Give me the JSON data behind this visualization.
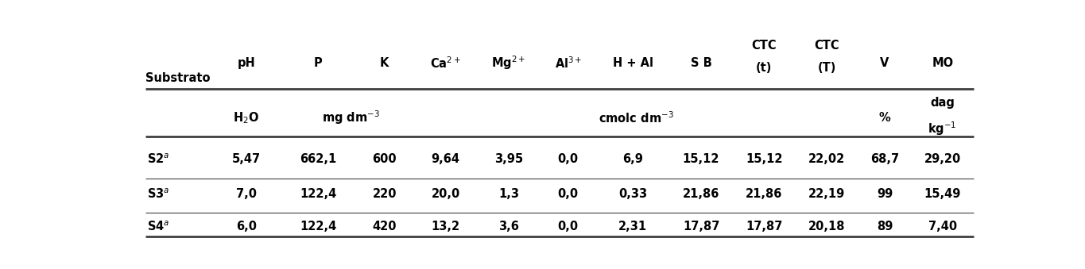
{
  "figsize": [
    13.65,
    3.39
  ],
  "dpi": 100,
  "background_color": "#ffffff",
  "row_label_col": "Substrato",
  "col_headers": [
    "pH",
    "P",
    "K",
    "Ca$^{2+}$",
    "Mg$^{2+}$",
    "Al$^{3+}$",
    "H + Al",
    "S B",
    "CTC\n(t)",
    "CTC\n(T)",
    "V",
    "MO"
  ],
  "unit_row": {
    "pH": "H$_2$O",
    "PK": "mg dm$^{-3}$",
    "middle": "cmolc dm$^{-3}$",
    "V": "%",
    "MO_top": "dag",
    "MO_bot": "kg$^{-1}$"
  },
  "rows": [
    {
      "label": "S2$^{a}$",
      "values": [
        "5,47",
        "662,1",
        "600",
        "9,64",
        "3,95",
        "0,0",
        "6,9",
        "15,12",
        "15,12",
        "22,02",
        "68,7",
        "29,20"
      ]
    },
    {
      "label": "S3$^{a}$",
      "values": [
        "7,0",
        "122,4",
        "220",
        "20,0",
        "1,3",
        "0,0",
        "0,33",
        "21,86",
        "21,86",
        "22,19",
        "99",
        "15,49"
      ]
    },
    {
      "label": "S4$^{a}$",
      "values": [
        "6,0",
        "122,4",
        "420",
        "13,2",
        "3,6",
        "0,0",
        "2,31",
        "17,87",
        "17,87",
        "20,18",
        "89",
        "7,40"
      ]
    }
  ],
  "text_color": "#000000",
  "line_color": "#3f3f3f",
  "font_size": 10.5,
  "bold_font": "bold"
}
